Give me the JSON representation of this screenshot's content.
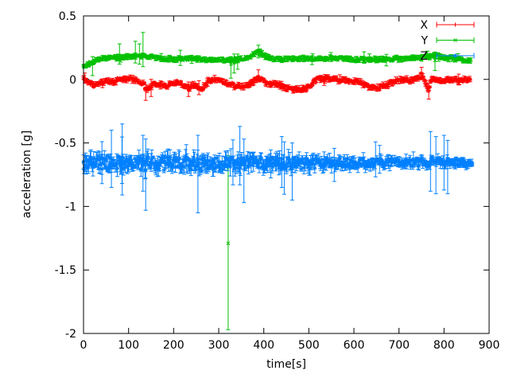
{
  "chart_data": {
    "type": "line",
    "style": "errorbars",
    "title": "",
    "xlabel": "time[s]",
    "ylabel": "acceleration [g]",
    "xlim": [
      0,
      900
    ],
    "ylim": [
      -2,
      0.5
    ],
    "xtick_values": [
      0,
      100,
      200,
      300,
      400,
      500,
      600,
      700,
      800,
      900
    ],
    "xtick_labels": [
      "0",
      "100",
      "200",
      "300",
      "400",
      "500",
      "600",
      "700",
      "800",
      "900"
    ],
    "ytick_values": [
      0.5,
      0,
      -0.5,
      -1,
      -1.5,
      -2
    ],
    "ytick_labels": [
      "0.5",
      "0",
      "-0.5",
      "-1",
      "-1.5",
      "-2"
    ],
    "grid": false,
    "legend_position": "top-right-inside",
    "frame_color": "#000000",
    "text_color": "#000000",
    "sample_step": 1.5,
    "series": [
      {
        "name": "X",
        "color": "#ff0000",
        "marker": "plus",
        "seed": 11,
        "trange": [
          0,
          858
        ],
        "keypoints": [
          [
            0,
            0.015
          ],
          [
            8,
            -0.01
          ],
          [
            20,
            -0.045
          ],
          [
            35,
            -0.035
          ],
          [
            50,
            -0.01
          ],
          [
            65,
            -0.02
          ],
          [
            80,
            0
          ],
          [
            100,
            0.005
          ],
          [
            120,
            -0.01
          ],
          [
            133,
            -0.03
          ],
          [
            140,
            -0.09
          ],
          [
            148,
            -0.05
          ],
          [
            165,
            -0.035
          ],
          [
            185,
            -0.045
          ],
          [
            205,
            -0.02
          ],
          [
            222,
            -0.04
          ],
          [
            233,
            -0.07
          ],
          [
            243,
            -0.04
          ],
          [
            252,
            -0.06
          ],
          [
            262,
            -0.075
          ],
          [
            275,
            -0.02
          ],
          [
            290,
            0.005
          ],
          [
            305,
            -0.01
          ],
          [
            326,
            -0.04
          ],
          [
            340,
            -0.055
          ],
          [
            360,
            -0.05
          ],
          [
            376,
            -0.02
          ],
          [
            388,
            0.015
          ],
          [
            400,
            -0.02
          ],
          [
            415,
            -0.035
          ],
          [
            435,
            -0.04
          ],
          [
            450,
            -0.07
          ],
          [
            470,
            -0.08
          ],
          [
            490,
            -0.075
          ],
          [
            505,
            -0.04
          ],
          [
            520,
            0
          ],
          [
            540,
            0.01
          ],
          [
            558,
            0
          ],
          [
            575,
            -0.005
          ],
          [
            595,
            -0.015
          ],
          [
            615,
            -0.025
          ],
          [
            632,
            -0.055
          ],
          [
            648,
            -0.07
          ],
          [
            662,
            -0.055
          ],
          [
            675,
            -0.04
          ],
          [
            690,
            -0.015
          ],
          [
            706,
            -0.005
          ],
          [
            722,
            -0.005
          ],
          [
            738,
            0.005
          ],
          [
            750,
            0.035
          ],
          [
            758,
            -0.02
          ],
          [
            766,
            -0.08
          ],
          [
            772,
            0.015
          ],
          [
            780,
            0
          ],
          [
            795,
            -0.01
          ],
          [
            815,
            -0.005
          ],
          [
            835,
            -0.01
          ],
          [
            858,
            0
          ]
        ],
        "band_keypoints": [
          [
            0,
            0.018
          ],
          [
            858,
            0.018
          ]
        ],
        "err_base": 0.004,
        "err_rand": 0.014,
        "err_scale_keypoints": [
          [
            0,
            1
          ],
          [
            858,
            1
          ]
        ],
        "spike_prob": 0.02,
        "spike_mult": 2.2,
        "outliers": [
          {
            "t": 3,
            "y": 0.01,
            "lo": -0.03,
            "hi": 0.05
          },
          {
            "t": 138,
            "y": -0.09,
            "lo": -0.165,
            "hi": -0.04
          },
          {
            "t": 150,
            "y": -0.05,
            "lo": -0.135,
            "hi": 0.0
          },
          {
            "t": 233,
            "y": -0.07,
            "lo": -0.135,
            "hi": -0.02
          },
          {
            "t": 256,
            "y": -0.06,
            "lo": -0.12,
            "hi": -0.01
          },
          {
            "t": 388,
            "y": 0.03,
            "lo": -0.01,
            "hi": 0.075
          },
          {
            "t": 750,
            "y": 0.05,
            "lo": 0.0,
            "hi": 0.095
          },
          {
            "t": 766,
            "y": -0.09,
            "lo": -0.155,
            "hi": -0.03
          }
        ]
      },
      {
        "name": "Y",
        "color": "#00c000",
        "marker": "cross",
        "seed": 22,
        "trange": [
          0,
          860
        ],
        "keypoints": [
          [
            0,
            0.105
          ],
          [
            10,
            0.12
          ],
          [
            25,
            0.15
          ],
          [
            40,
            0.165
          ],
          [
            60,
            0.17
          ],
          [
            85,
            0.175
          ],
          [
            110,
            0.18
          ],
          [
            132,
            0.185
          ],
          [
            150,
            0.175
          ],
          [
            175,
            0.165
          ],
          [
            200,
            0.16
          ],
          [
            230,
            0.165
          ],
          [
            260,
            0.155
          ],
          [
            290,
            0.15
          ],
          [
            320,
            0.15
          ],
          [
            345,
            0.16
          ],
          [
            365,
            0.17
          ],
          [
            383,
            0.205
          ],
          [
            392,
            0.215
          ],
          [
            400,
            0.185
          ],
          [
            415,
            0.165
          ],
          [
            440,
            0.16
          ],
          [
            470,
            0.16
          ],
          [
            500,
            0.165
          ],
          [
            530,
            0.17
          ],
          [
            560,
            0.165
          ],
          [
            590,
            0.16
          ],
          [
            620,
            0.158
          ],
          [
            650,
            0.155
          ],
          [
            680,
            0.16
          ],
          [
            710,
            0.165
          ],
          [
            740,
            0.17
          ],
          [
            762,
            0.18
          ],
          [
            778,
            0.19
          ],
          [
            795,
            0.175
          ],
          [
            815,
            0.165
          ],
          [
            835,
            0.16
          ],
          [
            860,
            0.145
          ]
        ],
        "band_keypoints": [
          [
            0,
            0.015
          ],
          [
            860,
            0.015
          ]
        ],
        "err_base": 0.004,
        "err_rand": 0.012,
        "err_scale_keypoints": [
          [
            0,
            1
          ],
          [
            860,
            1
          ]
        ],
        "spike_prob": 0.025,
        "spike_mult": 2.2,
        "outliers": [
          {
            "t": 20,
            "y": 0.13,
            "lo": 0.03,
            "hi": 0.18
          },
          {
            "t": 80,
            "y": 0.19,
            "lo": 0.12,
            "hi": 0.28
          },
          {
            "t": 115,
            "y": 0.2,
            "lo": 0.13,
            "hi": 0.3
          },
          {
            "t": 124,
            "y": 0.19,
            "lo": 0.12,
            "hi": 0.28
          },
          {
            "t": 132,
            "y": 0.19,
            "lo": 0.1,
            "hi": 0.37
          },
          {
            "t": 215,
            "y": 0.17,
            "lo": 0.11,
            "hi": 0.23
          },
          {
            "t": 321,
            "y": -1.29,
            "lo": -1.97,
            "hi": -0.6
          },
          {
            "t": 327,
            "y": 0.12,
            "lo": 0.01,
            "hi": 0.18
          },
          {
            "t": 334,
            "y": 0.13,
            "lo": 0.05,
            "hi": 0.2
          },
          {
            "t": 342,
            "y": 0.14,
            "lo": 0.08,
            "hi": 0.2
          },
          {
            "t": 388,
            "y": 0.22,
            "lo": 0.17,
            "hi": 0.27
          },
          {
            "t": 780,
            "y": 0.15,
            "lo": 0.07,
            "hi": 0.21
          }
        ]
      },
      {
        "name": "Z",
        "color": "#0080ff",
        "marker": "star",
        "seed": 33,
        "trange": [
          0,
          863
        ],
        "keypoints": [
          [
            0,
            -0.655
          ],
          [
            40,
            -0.66
          ],
          [
            90,
            -0.655
          ],
          [
            140,
            -0.665
          ],
          [
            200,
            -0.66
          ],
          [
            260,
            -0.668
          ],
          [
            320,
            -0.66
          ],
          [
            380,
            -0.655
          ],
          [
            440,
            -0.662
          ],
          [
            500,
            -0.665
          ],
          [
            560,
            -0.66
          ],
          [
            620,
            -0.658
          ],
          [
            680,
            -0.655
          ],
          [
            740,
            -0.652
          ],
          [
            790,
            -0.648
          ],
          [
            863,
            -0.655
          ]
        ],
        "band_keypoints": [
          [
            0,
            0.05
          ],
          [
            150,
            0.055
          ],
          [
            300,
            0.05
          ],
          [
            420,
            0.045
          ],
          [
            520,
            0.04
          ],
          [
            620,
            0.035
          ],
          [
            720,
            0.031
          ],
          [
            863,
            0.027
          ]
        ],
        "err_base": 0.008,
        "err_rand": 0.065,
        "err_scale_keypoints": [
          [
            0,
            1
          ],
          [
            420,
            1
          ],
          [
            600,
            0.7
          ],
          [
            863,
            0.45
          ]
        ],
        "spike_prob": 0.035,
        "spike_mult": 2.4,
        "outliers": [
          {
            "t": 41,
            "y": -0.66,
            "lo": -0.82,
            "hi": -0.49
          },
          {
            "t": 62,
            "y": -0.655,
            "lo": -0.85,
            "hi": -0.4
          },
          {
            "t": 86,
            "y": -0.66,
            "lo": -0.91,
            "hi": -0.35
          },
          {
            "t": 132,
            "y": -0.665,
            "lo": -0.88,
            "hi": -0.44
          },
          {
            "t": 138,
            "y": -0.665,
            "lo": -1.03,
            "hi": -0.47
          },
          {
            "t": 254,
            "y": -0.66,
            "lo": -1.05,
            "hi": -0.44
          },
          {
            "t": 347,
            "y": -0.66,
            "lo": -0.83,
            "hi": -0.37
          },
          {
            "t": 356,
            "y": -0.66,
            "lo": -0.97,
            "hi": -0.47
          },
          {
            "t": 440,
            "y": -0.662,
            "lo": -0.85,
            "hi": -0.45
          },
          {
            "t": 463,
            "y": -0.663,
            "lo": -0.95,
            "hi": -0.5
          },
          {
            "t": 770,
            "y": -0.65,
            "lo": -0.88,
            "hi": -0.41
          },
          {
            "t": 782,
            "y": -0.65,
            "lo": -0.9,
            "hi": -0.45
          },
          {
            "t": 800,
            "y": -0.649,
            "lo": -0.87,
            "hi": -0.44
          },
          {
            "t": 808,
            "y": -0.649,
            "lo": -0.9,
            "hi": -0.48
          }
        ]
      }
    ]
  }
}
